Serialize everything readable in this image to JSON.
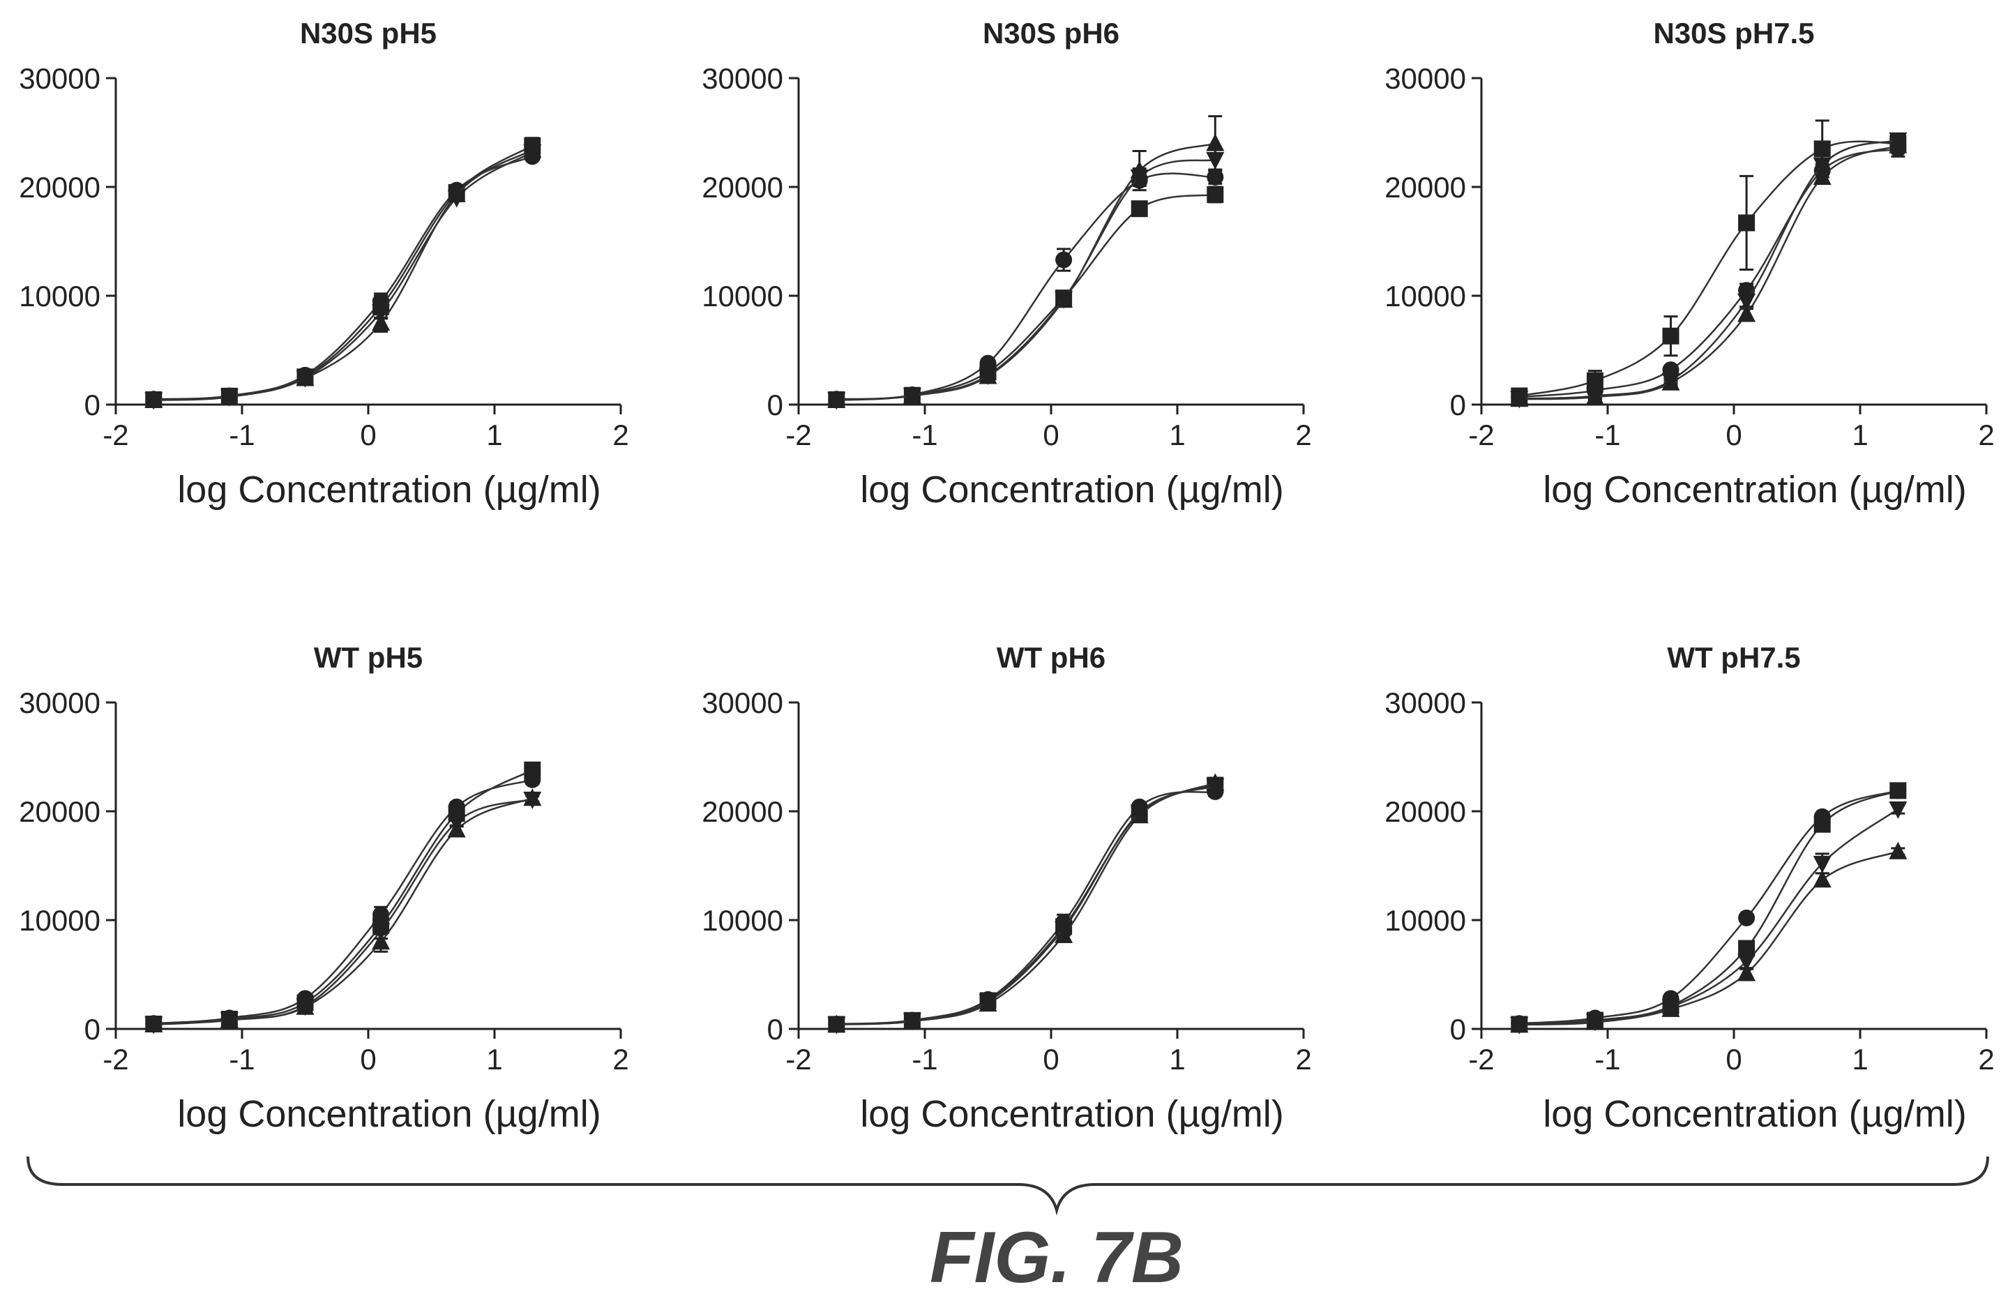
{
  "figure_label": "FIG. 7B",
  "chart_data": [
    {
      "type": "line",
      "title": "N30S pH5",
      "xlabel": "log Concentration (µg/ml)",
      "ylabel": "",
      "xlim": [
        -2,
        2
      ],
      "ylim": [
        0,
        30000
      ],
      "xticks": [
        "-2",
        "-1",
        "0",
        "1",
        "2"
      ],
      "yticks": [
        "0",
        "10000",
        "20000",
        "30000"
      ],
      "x": [
        -1.7,
        -1.1,
        -0.5,
        0.1,
        0.7,
        1.3
      ],
      "series": [
        {
          "marker": "circle",
          "values": [
            500,
            800,
            2700,
            9500,
            19700,
            22800
          ],
          "errors": [
            100,
            100,
            200,
            700,
            300,
            300
          ]
        },
        {
          "marker": "square",
          "values": [
            450,
            780,
            2550,
            9000,
            19500,
            23800
          ],
          "errors": [
            100,
            100,
            200,
            1000,
            400,
            700
          ]
        },
        {
          "marker": "triangle-up",
          "values": [
            400,
            700,
            2400,
            7500,
            19300,
            23400
          ],
          "errors": [
            100,
            100,
            200,
            800,
            300,
            400
          ]
        },
        {
          "marker": "triangle-down",
          "values": [
            420,
            720,
            2450,
            8500,
            19000,
            23200
          ],
          "errors": [
            100,
            100,
            200,
            600,
            300,
            300
          ]
        }
      ]
    },
    {
      "type": "line",
      "title": "N30S pH6",
      "xlabel": "log Concentration (µg/ml)",
      "ylabel": "",
      "xlim": [
        -2,
        2
      ],
      "ylim": [
        0,
        30000
      ],
      "xticks": [
        "-2",
        "-1",
        "0",
        "1",
        "2"
      ],
      "yticks": [
        "0",
        "10000",
        "20000",
        "30000"
      ],
      "x": [
        -1.7,
        -1.1,
        -0.5,
        0.1,
        0.7,
        1.3
      ],
      "series": [
        {
          "marker": "circle",
          "values": [
            500,
            900,
            3800,
            13300,
            20600,
            20900
          ],
          "errors": [
            100,
            100,
            200,
            1000,
            500,
            600
          ]
        },
        {
          "marker": "square",
          "values": [
            450,
            850,
            3000,
            9800,
            18000,
            19300
          ],
          "errors": [
            100,
            100,
            200,
            500,
            500,
            700
          ]
        },
        {
          "marker": "triangle-up",
          "values": [
            400,
            800,
            2600,
            9600,
            21500,
            24000
          ],
          "errors": [
            100,
            100,
            200,
            500,
            1800,
            2500
          ]
        },
        {
          "marker": "triangle-down",
          "values": [
            420,
            820,
            2700,
            9700,
            20900,
            22500
          ],
          "errors": [
            100,
            100,
            200,
            500,
            800,
            900
          ]
        }
      ]
    },
    {
      "type": "line",
      "title": "N30S pH7.5",
      "xlabel": "log Concentration (µg/ml)",
      "ylabel": "",
      "xlim": [
        -2,
        2
      ],
      "ylim": [
        0,
        30000
      ],
      "xticks": [
        "-2",
        "-1",
        "0",
        "1",
        "2"
      ],
      "yticks": [
        "0",
        "10000",
        "20000",
        "30000"
      ],
      "x": [
        -1.7,
        -1.1,
        -0.5,
        0.1,
        0.7,
        1.3
      ],
      "series": [
        {
          "marker": "circle",
          "values": [
            700,
            1300,
            3200,
            10500,
            21500,
            23500
          ],
          "errors": [
            100,
            800,
            200,
            600,
            600,
            700
          ]
        },
        {
          "marker": "square",
          "values": [
            800,
            2200,
            6300,
            16700,
            23500,
            24000
          ],
          "errors": [
            200,
            900,
            1800,
            4300,
            2600,
            700
          ]
        },
        {
          "marker": "triangle-up",
          "values": [
            500,
            700,
            2000,
            8300,
            20900,
            23800
          ],
          "errors": [
            100,
            200,
            200,
            500,
            500,
            600
          ]
        },
        {
          "marker": "triangle-down",
          "values": [
            550,
            800,
            2200,
            9500,
            22000,
            24300
          ],
          "errors": [
            100,
            200,
            200,
            500,
            500,
            600
          ]
        }
      ]
    },
    {
      "type": "line",
      "title": "WT pH5",
      "xlabel": "log Concentration (µg/ml)",
      "ylabel": "",
      "xlim": [
        -2,
        2
      ],
      "ylim": [
        0,
        30000
      ],
      "xticks": [
        "-2",
        "-1",
        "0",
        "1",
        "2"
      ],
      "yticks": [
        "0",
        "10000",
        "20000",
        "30000"
      ],
      "x": [
        -1.7,
        -1.1,
        -0.5,
        0.1,
        0.7,
        1.3
      ],
      "series": [
        {
          "marker": "circle",
          "values": [
            500,
            1000,
            2800,
            10500,
            20400,
            22900
          ],
          "errors": [
            100,
            100,
            200,
            700,
            400,
            400
          ]
        },
        {
          "marker": "square",
          "values": [
            450,
            900,
            2400,
            9500,
            19800,
            23800
          ],
          "errors": [
            100,
            100,
            200,
            800,
            400,
            500
          ]
        },
        {
          "marker": "triangle-up",
          "values": [
            400,
            800,
            2000,
            8000,
            18300,
            21200
          ],
          "errors": [
            100,
            100,
            200,
            900,
            400,
            300
          ]
        },
        {
          "marker": "triangle-down",
          "values": [
            420,
            850,
            2100,
            9000,
            19000,
            21100
          ],
          "errors": [
            100,
            100,
            200,
            700,
            400,
            300
          ]
        }
      ]
    },
    {
      "type": "line",
      "title": "WT pH6",
      "xlabel": "log Concentration (µg/ml)",
      "ylabel": "",
      "xlim": [
        -2,
        2
      ],
      "ylim": [
        0,
        30000
      ],
      "xticks": [
        "-2",
        "-1",
        "0",
        "1",
        "2"
      ],
      "yticks": [
        "0",
        "10000",
        "20000",
        "30000"
      ],
      "x": [
        -1.7,
        -1.1,
        -0.5,
        0.1,
        0.7,
        1.3
      ],
      "series": [
        {
          "marker": "circle",
          "values": [
            450,
            800,
            2700,
            9800,
            20400,
            21800
          ],
          "errors": [
            100,
            100,
            200,
            700,
            300,
            400
          ]
        },
        {
          "marker": "square",
          "values": [
            420,
            780,
            2600,
            9400,
            19800,
            22400
          ],
          "errors": [
            100,
            100,
            200,
            600,
            300,
            400
          ]
        },
        {
          "marker": "triangle-up",
          "values": [
            400,
            700,
            2300,
            8600,
            19600,
            22600
          ],
          "errors": [
            100,
            100,
            200,
            600,
            300,
            400
          ]
        },
        {
          "marker": "triangle-down",
          "values": [
            410,
            750,
            2500,
            9200,
            19900,
            22300
          ],
          "errors": [
            100,
            100,
            200,
            600,
            300,
            400
          ]
        }
      ]
    },
    {
      "type": "line",
      "title": "WT pH7.5",
      "xlabel": "log Concentration (µg/ml)",
      "ylabel": "",
      "xlim": [
        -2,
        2
      ],
      "ylim": [
        0,
        30000
      ],
      "xticks": [
        "-2",
        "-1",
        "0",
        "1",
        "2"
      ],
      "yticks": [
        "0",
        "10000",
        "20000",
        "30000"
      ],
      "x": [
        -1.7,
        -1.1,
        -0.5,
        0.1,
        0.7,
        1.3
      ],
      "series": [
        {
          "marker": "circle",
          "values": [
            500,
            1000,
            2800,
            10200,
            19500,
            21900
          ],
          "errors": [
            100,
            100,
            200,
            300,
            300,
            400
          ]
        },
        {
          "marker": "square",
          "values": [
            420,
            800,
            2100,
            7400,
            18800,
            21900
          ],
          "errors": [
            100,
            100,
            200,
            500,
            500,
            500
          ]
        },
        {
          "marker": "triangle-up",
          "values": [
            380,
            600,
            1800,
            5100,
            13700,
            16300
          ],
          "errors": [
            100,
            100,
            200,
            400,
            600,
            300
          ]
        },
        {
          "marker": "triangle-down",
          "values": [
            400,
            700,
            2000,
            6200,
            15200,
            20200
          ],
          "errors": [
            100,
            100,
            200,
            600,
            900,
            400
          ]
        }
      ]
    }
  ]
}
